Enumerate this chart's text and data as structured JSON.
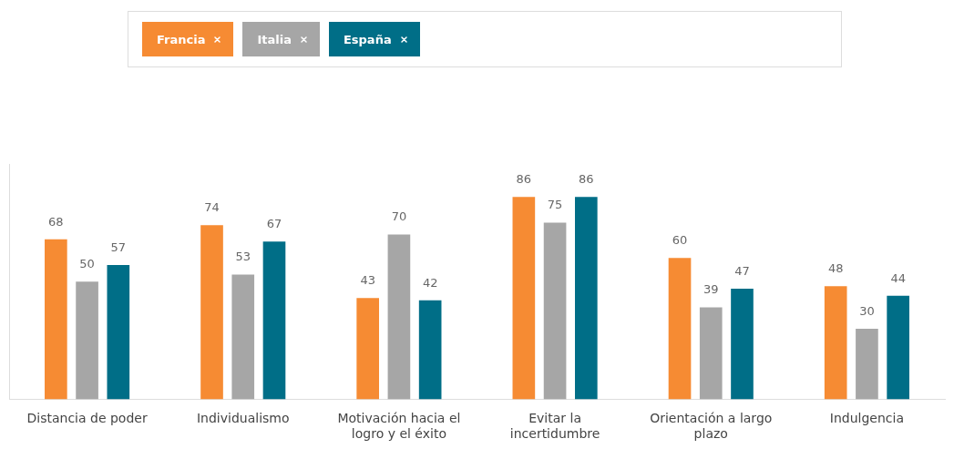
{
  "chart_data": {
    "type": "bar",
    "categories": [
      "Distancia de poder",
      "Individualismo",
      "Motivación hacia el logro y el éxito",
      "Evitar la incertidumbre",
      "Orientación a largo plazo",
      "Indulgencia"
    ],
    "series": [
      {
        "name": "Francia",
        "color": "#f68b33",
        "values": [
          68,
          74,
          43,
          86,
          60,
          48
        ]
      },
      {
        "name": "Italia",
        "color": "#a6a6a6",
        "values": [
          50,
          53,
          70,
          75,
          39,
          30
        ]
      },
      {
        "name": "España",
        "color": "#006e87",
        "values": [
          57,
          67,
          42,
          86,
          47,
          44
        ]
      }
    ],
    "ylim": [
      0,
      100
    ],
    "tick_labels": "x",
    "data_labels": true,
    "legend": "top",
    "grid": false
  }
}
